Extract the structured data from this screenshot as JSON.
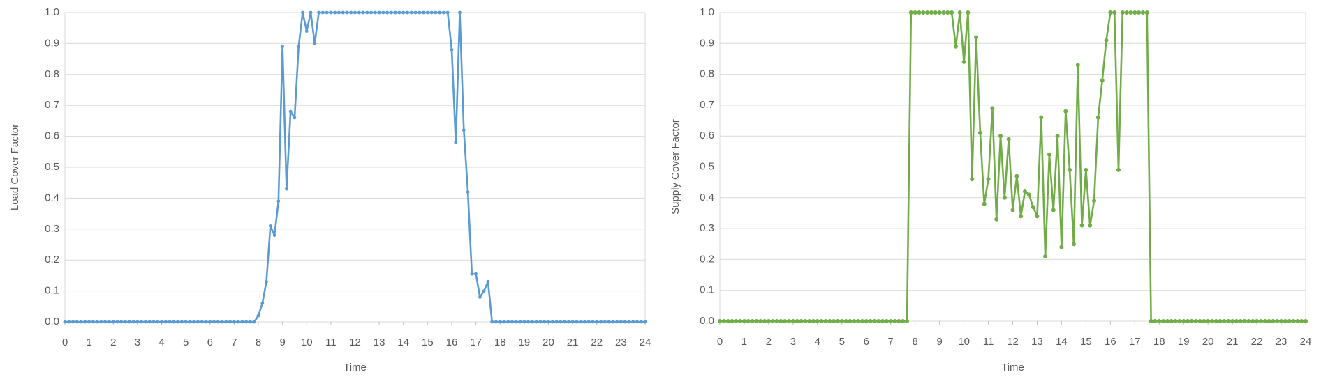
{
  "chart_data": [
    {
      "type": "line",
      "ylabel": "Load Cover Factor",
      "xlabel": "Time",
      "color": "#5b9bd5",
      "grid": true,
      "xlim": [
        0,
        24
      ],
      "ylim": [
        0,
        1
      ],
      "xticks": [
        0,
        1,
        2,
        3,
        4,
        5,
        6,
        7,
        8,
        9,
        10,
        11,
        12,
        13,
        14,
        15,
        16,
        17,
        18,
        19,
        20,
        21,
        22,
        23,
        24
      ],
      "yticks": [
        {
          "value": 0,
          "label": "0.0"
        },
        0.1,
        0.2,
        0.3,
        0.4,
        0.5,
        0.6,
        0.7,
        0.8,
        0.9,
        {
          "value": 1,
          "label": "1.0"
        }
      ],
      "x": [
        0,
        0.167,
        0.333,
        0.5,
        0.667,
        0.833,
        1,
        1.167,
        1.333,
        1.5,
        1.667,
        1.833,
        2,
        2.167,
        2.333,
        2.5,
        2.667,
        2.833,
        3,
        3.167,
        3.333,
        3.5,
        3.667,
        3.833,
        4,
        4.167,
        4.333,
        4.5,
        4.667,
        4.833,
        5,
        5.167,
        5.333,
        5.5,
        5.667,
        5.833,
        6,
        6.167,
        6.333,
        6.5,
        6.667,
        6.833,
        7,
        7.167,
        7.333,
        7.5,
        7.667,
        7.833,
        8,
        8.167,
        8.333,
        8.5,
        8.667,
        8.833,
        9,
        9.167,
        9.333,
        9.5,
        9.667,
        9.833,
        10,
        10.167,
        10.333,
        10.5,
        10.667,
        10.833,
        11,
        11.167,
        11.333,
        11.5,
        11.667,
        11.833,
        12,
        12.167,
        12.333,
        12.5,
        12.667,
        12.833,
        13,
        13.167,
        13.333,
        13.5,
        13.667,
        13.833,
        14,
        14.167,
        14.333,
        14.5,
        14.667,
        14.833,
        15,
        15.167,
        15.333,
        15.5,
        15.667,
        15.833,
        16,
        16.167,
        16.333,
        16.5,
        16.667,
        16.833,
        17,
        17.167,
        17.333,
        17.5,
        17.667,
        17.833,
        18,
        18.167,
        18.333,
        18.5,
        18.667,
        18.833,
        19,
        19.167,
        19.333,
        19.5,
        19.667,
        19.833,
        20,
        20.167,
        20.333,
        20.5,
        20.667,
        20.833,
        21,
        21.167,
        21.333,
        21.5,
        21.667,
        21.833,
        22,
        22.167,
        22.333,
        22.5,
        22.667,
        22.833,
        23,
        23.167,
        23.333,
        23.5,
        23.667,
        23.833,
        24
      ],
      "series": [
        {
          "color": "#5b9bd5",
          "values": [
            0,
            0,
            0,
            0,
            0,
            0,
            0,
            0,
            0,
            0,
            0,
            0,
            0,
            0,
            0,
            0,
            0,
            0,
            0,
            0,
            0,
            0,
            0,
            0,
            0,
            0,
            0,
            0,
            0,
            0,
            0,
            0,
            0,
            0,
            0,
            0,
            0,
            0,
            0,
            0,
            0,
            0,
            0,
            0,
            0,
            0,
            0,
            0,
            0.02,
            0.06,
            0.13,
            0.31,
            0.28,
            0.39,
            0.89,
            0.43,
            0.68,
            0.66,
            0.89,
            1,
            0.94,
            1,
            0.9,
            1,
            1,
            1,
            1,
            1,
            1,
            1,
            1,
            1,
            1,
            1,
            1,
            1,
            1,
            1,
            1,
            1,
            1,
            1,
            1,
            1,
            1,
            1,
            1,
            1,
            1,
            1,
            1,
            1,
            1,
            1,
            1,
            1,
            0.88,
            0.58,
            1,
            0.62,
            0.42,
            0.155,
            0.155,
            0.08,
            0.1,
            0.13,
            0,
            0,
            0,
            0,
            0,
            0,
            0,
            0,
            0,
            0,
            0,
            0,
            0,
            0,
            0,
            0,
            0,
            0,
            0,
            0,
            0,
            0,
            0,
            0,
            0,
            0,
            0,
            0,
            0,
            0,
            0,
            0,
            0,
            0,
            0,
            0,
            0,
            0,
            0
          ]
        }
      ]
    },
    {
      "type": "line",
      "ylabel": "Supply Cover Factor",
      "xlabel": "Time",
      "color": "#70ad47",
      "grid": true,
      "xlim": [
        0,
        24
      ],
      "ylim": [
        0,
        1
      ],
      "xticks": [
        0,
        1,
        2,
        3,
        4,
        5,
        6,
        7,
        8,
        9,
        10,
        11,
        12,
        13,
        14,
        15,
        16,
        17,
        18,
        19,
        20,
        21,
        22,
        23,
        24
      ],
      "yticks": [
        {
          "value": 0,
          "label": "0.0"
        },
        0.1,
        0.2,
        0.3,
        0.4,
        0.5,
        0.6,
        0.7,
        0.8,
        0.9,
        {
          "value": 1,
          "label": "1.0"
        }
      ],
      "x": [
        0,
        0.167,
        0.333,
        0.5,
        0.667,
        0.833,
        1,
        1.167,
        1.333,
        1.5,
        1.667,
        1.833,
        2,
        2.167,
        2.333,
        2.5,
        2.667,
        2.833,
        3,
        3.167,
        3.333,
        3.5,
        3.667,
        3.833,
        4,
        4.167,
        4.333,
        4.5,
        4.667,
        4.833,
        5,
        5.167,
        5.333,
        5.5,
        5.667,
        5.833,
        6,
        6.167,
        6.333,
        6.5,
        6.667,
        6.833,
        7,
        7.167,
        7.333,
        7.5,
        7.667,
        7.833,
        8,
        8.167,
        8.333,
        8.5,
        8.667,
        8.833,
        9,
        9.167,
        9.333,
        9.5,
        9.667,
        9.833,
        10,
        10.167,
        10.333,
        10.5,
        10.667,
        10.833,
        11,
        11.167,
        11.333,
        11.5,
        11.667,
        11.833,
        12,
        12.167,
        12.333,
        12.5,
        12.667,
        12.833,
        13,
        13.167,
        13.333,
        13.5,
        13.667,
        13.833,
        14,
        14.167,
        14.333,
        14.5,
        14.667,
        14.833,
        15,
        15.167,
        15.333,
        15.5,
        15.667,
        15.833,
        16,
        16.167,
        16.333,
        16.5,
        16.667,
        16.833,
        17,
        17.167,
        17.333,
        17.5,
        17.667,
        17.833,
        18,
        18.167,
        18.333,
        18.5,
        18.667,
        18.833,
        19,
        19.167,
        19.333,
        19.5,
        19.667,
        19.833,
        20,
        20.167,
        20.333,
        20.5,
        20.667,
        20.833,
        21,
        21.167,
        21.333,
        21.5,
        21.667,
        21.833,
        22,
        22.167,
        22.333,
        22.5,
        22.667,
        22.833,
        23,
        23.167,
        23.333,
        23.5,
        23.667,
        23.833,
        24
      ],
      "series": [
        {
          "color": "#70ad47",
          "values": [
            0,
            0,
            0,
            0,
            0,
            0,
            0,
            0,
            0,
            0,
            0,
            0,
            0,
            0,
            0,
            0,
            0,
            0,
            0,
            0,
            0,
            0,
            0,
            0,
            0,
            0,
            0,
            0,
            0,
            0,
            0,
            0,
            0,
            0,
            0,
            0,
            0,
            0,
            0,
            0,
            0,
            0,
            0,
            0,
            0,
            0,
            0,
            1,
            1,
            1,
            1,
            1,
            1,
            1,
            1,
            1,
            1,
            1,
            0.89,
            1,
            0.84,
            1,
            0.46,
            0.92,
            0.61,
            0.38,
            0.46,
            0.69,
            0.33,
            0.6,
            0.4,
            0.59,
            0.36,
            0.47,
            0.34,
            0.42,
            0.41,
            0.37,
            0.34,
            0.66,
            0.21,
            0.54,
            0.36,
            0.6,
            0.24,
            0.68,
            0.49,
            0.25,
            0.83,
            0.31,
            0.49,
            0.31,
            0.39,
            0.66,
            0.78,
            0.91,
            1,
            1,
            0.49,
            1,
            1,
            1,
            1,
            1,
            1,
            1,
            0,
            0,
            0,
            0,
            0,
            0,
            0,
            0,
            0,
            0,
            0,
            0,
            0,
            0,
            0,
            0,
            0,
            0,
            0,
            0,
            0,
            0,
            0,
            0,
            0,
            0,
            0,
            0,
            0,
            0,
            0,
            0,
            0,
            0,
            0,
            0,
            0,
            0,
            0
          ]
        }
      ]
    }
  ]
}
